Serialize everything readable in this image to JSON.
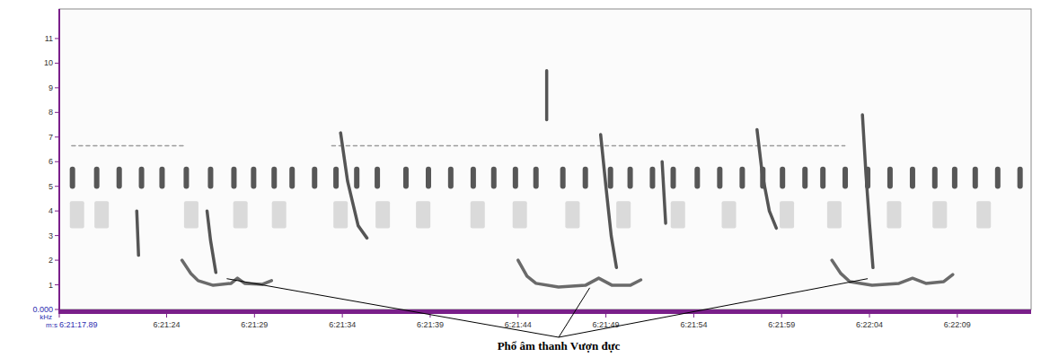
{
  "chart_data": {
    "type": "spectrogram",
    "y_label": "kHz",
    "x_label": "m:s",
    "xlim": [
      17.89,
      73.2
    ],
    "ylim": [
      0,
      12.2
    ],
    "grid": false,
    "yticks": [
      {
        "value": 0,
        "label": "0.000"
      },
      1,
      2,
      3,
      4,
      5,
      6,
      7,
      8,
      9,
      10,
      11
    ],
    "xticks": [
      {
        "value": 17.89,
        "label": "6:21:17.89"
      },
      {
        "value": 24,
        "label": "6:21:24"
      },
      {
        "value": 29,
        "label": "6:21:29"
      },
      {
        "value": 34,
        "label": "6:21:34"
      },
      {
        "value": 39,
        "label": "6:21:39"
      },
      {
        "value": 44,
        "label": "6:21:44"
      },
      {
        "value": 49,
        "label": "6:21:49"
      },
      {
        "value": 54,
        "label": "6:21:54"
      },
      {
        "value": 59,
        "label": "6:21:59"
      },
      {
        "value": 64,
        "label": "6:22:04"
      },
      {
        "value": 69,
        "label": "6:22:09"
      }
    ],
    "series": [
      {
        "type": "range",
        "color": "#c4c4c4",
        "x": [
          18.9,
          20.3,
          25.4,
          28.2,
          30.4,
          33.9,
          36.3,
          38.6,
          41.7,
          44.1,
          47.1,
          50.0,
          53.1,
          56.0,
          59.3,
          62.0,
          65.4,
          68.0,
          70.5
        ],
        "low": [
          3.3,
          3.3,
          3.3,
          3.3,
          3.3,
          3.3,
          3.3,
          3.3,
          3.3,
          3.3,
          3.3,
          3.3,
          3.3,
          3.3,
          3.3,
          3.3,
          3.3,
          3.3,
          3.3
        ],
        "high": [
          4.4,
          4.4,
          4.4,
          4.4,
          4.4,
          4.4,
          4.4,
          4.4,
          4.4,
          4.4,
          4.4,
          4.4,
          4.4,
          4.4,
          4.4,
          4.4,
          4.4,
          4.4,
          4.4
        ]
      },
      {
        "type": "range",
        "color": "#3a3a3a",
        "x": [
          18.64,
          20.02,
          21.3,
          22.57,
          23.74,
          25.12,
          26.5,
          27.83,
          28.95,
          30.12,
          31.14,
          32.42,
          33.64,
          34.82,
          35.99,
          37.62,
          38.9,
          40.17,
          41.45,
          42.62,
          43.85,
          45.02,
          46.55,
          47.83,
          49.26,
          50.38,
          51.65,
          52.83,
          54.2,
          55.48,
          56.76,
          57.93,
          59.05,
          60.33,
          61.35,
          62.62,
          63.9,
          65.17,
          66.45,
          67.72,
          68.85,
          70.02,
          71.3,
          72.57
        ],
        "low": [
          4.9,
          4.9,
          4.9,
          4.9,
          4.9,
          4.9,
          4.9,
          4.9,
          4.9,
          4.9,
          4.9,
          4.9,
          4.9,
          4.9,
          4.9,
          4.9,
          4.9,
          4.9,
          4.9,
          4.9,
          4.9,
          4.9,
          4.9,
          4.9,
          4.9,
          4.9,
          4.9,
          4.9,
          4.9,
          4.9,
          4.9,
          4.9,
          4.9,
          4.9,
          4.9,
          4.9,
          4.9,
          4.9,
          4.9,
          4.9,
          4.9,
          4.9,
          4.9,
          4.9
        ],
        "high": [
          5.8,
          5.8,
          5.8,
          5.8,
          5.8,
          5.8,
          5.8,
          5.8,
          5.8,
          5.8,
          5.8,
          5.8,
          5.8,
          5.8,
          5.8,
          5.8,
          5.8,
          5.8,
          5.8,
          5.8,
          5.8,
          5.8,
          5.8,
          5.8,
          5.8,
          5.8,
          5.8,
          5.8,
          5.8,
          5.8,
          5.8,
          5.8,
          5.8,
          5.8,
          5.8,
          5.8,
          5.8,
          5.8,
          5.8,
          5.8,
          5.8,
          5.8,
          5.8,
          5.8
        ]
      },
      {
        "type": "line",
        "color": "#9a9a9a",
        "line_style": "dashed",
        "x": [
          18.6,
          25.1
        ],
        "values": [
          6.65,
          6.65
        ]
      },
      {
        "type": "line",
        "color": "#9a9a9a",
        "line_style": "dashed",
        "x": [
          33.4,
          62.6
        ],
        "values": [
          6.65,
          6.65
        ]
      },
      {
        "type": "line",
        "color": "#555555",
        "line_style": "solid",
        "x": [
          22.3,
          22.4
        ],
        "values": [
          4.0,
          2.2
        ]
      },
      {
        "type": "line",
        "color": "#555555",
        "line_style": "solid",
        "x": [
          26.3,
          26.5,
          26.8
        ],
        "values": [
          4.0,
          2.8,
          1.5
        ]
      },
      {
        "type": "line",
        "color": "#555555",
        "line_style": "solid",
        "x": [
          33.9,
          34.3,
          34.9,
          35.4
        ],
        "values": [
          7.17,
          5.2,
          3.4,
          2.9
        ]
      },
      {
        "type": "line",
        "color": "#555555",
        "line_style": "solid",
        "x": [
          45.63,
          45.63
        ],
        "values": [
          9.7,
          7.7
        ]
      },
      {
        "type": "line",
        "color": "#555555",
        "line_style": "solid",
        "x": [
          48.7,
          49.0,
          49.3,
          49.6
        ],
        "values": [
          7.1,
          5.0,
          3.0,
          1.7
        ]
      },
      {
        "type": "line",
        "color": "#555555",
        "line_style": "solid",
        "x": [
          52.2,
          52.4
        ],
        "values": [
          6.0,
          3.5
        ]
      },
      {
        "type": "line",
        "color": "#555555",
        "line_style": "solid",
        "x": [
          57.6,
          57.9,
          58.3,
          58.7
        ],
        "values": [
          7.3,
          5.5,
          4.0,
          3.3
        ]
      },
      {
        "type": "line",
        "color": "#555555",
        "line_style": "solid",
        "x": [
          63.6,
          63.8,
          64.0,
          64.2
        ],
        "values": [
          7.9,
          5.5,
          3.5,
          1.7
        ]
      },
      {
        "type": "line",
        "color": "#6a6a6a",
        "line_style": "solid",
        "x": [
          24.87,
          25.38,
          25.79,
          26.65,
          27.67,
          28.03,
          28.44,
          29.46,
          29.97
        ],
        "values": [
          2.0,
          1.46,
          1.17,
          0.98,
          1.06,
          1.27,
          1.06,
          1.02,
          1.17
        ]
      },
      {
        "type": "line",
        "color": "#6a6a6a",
        "line_style": "solid",
        "x": [
          44.0,
          44.51,
          45.02,
          46.3,
          47.83,
          48.59,
          49.36,
          50.38,
          50.99
        ],
        "values": [
          2.0,
          1.35,
          1.06,
          0.91,
          0.98,
          1.27,
          0.98,
          0.98,
          1.2
        ]
      },
      {
        "type": "line",
        "color": "#6a6a6a",
        "line_style": "solid",
        "x": [
          61.86,
          62.37,
          62.88,
          64.15,
          65.68,
          66.45,
          67.21,
          68.23,
          68.74
        ],
        "values": [
          2.0,
          1.46,
          1.13,
          0.98,
          1.06,
          1.27,
          1.06,
          1.13,
          1.42
        ]
      }
    ],
    "annotation": {
      "text": "Phổ âm thanh Vượn đực",
      "x": [
        27.42,
        48.08,
        63.9
      ],
      "y": [
        1.25,
        0.88,
        1.25
      ]
    }
  }
}
